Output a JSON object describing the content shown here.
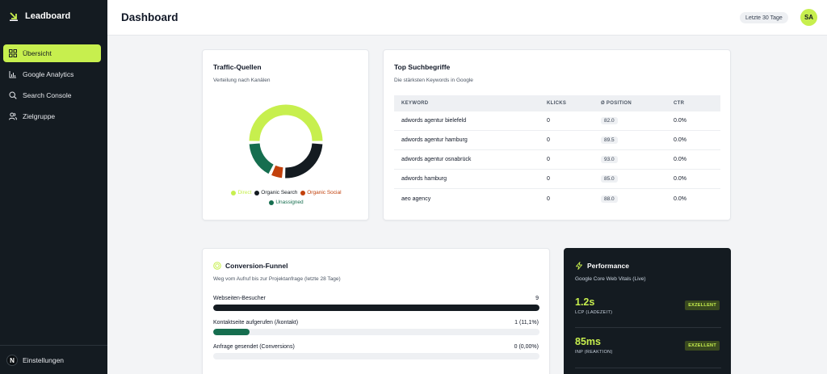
{
  "app": {
    "name": "Leadboard"
  },
  "sidebar": {
    "items": [
      {
        "label": "Übersicht",
        "icon": "grid-icon",
        "active": true
      },
      {
        "label": "Google Analytics",
        "icon": "bar-chart-icon"
      },
      {
        "label": "Search Console",
        "icon": "search-icon"
      },
      {
        "label": "Zielgruppe",
        "icon": "users-icon"
      }
    ],
    "settings": {
      "label": "Einstellungen",
      "icon_letter": "N"
    }
  },
  "header": {
    "title": "Dashboard",
    "date_range": "Letzte 30 Tage",
    "avatar_initials": "SA"
  },
  "traffic": {
    "title": "Traffic-Quellen",
    "subtitle": "Verteilung nach Kanälen",
    "legend": [
      {
        "label": "Direct",
        "color": "#c7ef4e"
      },
      {
        "label": "Organic Search",
        "color": "#141b21"
      },
      {
        "label": "Organic Social",
        "color": "#c2410c"
      },
      {
        "label": "Unassigned",
        "color": "#166e4f"
      }
    ]
  },
  "chart_data": {
    "type": "pie",
    "variant": "donut",
    "labels": [
      "Direct",
      "Organic Search",
      "Organic Social",
      "Unassigned"
    ],
    "values": [
      50,
      25,
      6,
      17
    ],
    "colors": [
      "#c7ef4e",
      "#141b21",
      "#c2410c",
      "#166e4f"
    ],
    "legend_position": "bottom"
  },
  "keywords": {
    "title": "Top Suchbegriffe",
    "subtitle": "Die stärksten Keywords in Google",
    "columns": [
      "KEYWORD",
      "KLICKS",
      "Ø POSITION",
      "CTR"
    ],
    "rows": [
      {
        "keyword": "adwords agentur bielefeld",
        "clicks": "0",
        "position": "82.0",
        "ctr": "0.0%"
      },
      {
        "keyword": "adwords agentur hamburg",
        "clicks": "0",
        "position": "89.5",
        "ctr": "0.0%"
      },
      {
        "keyword": "adwords agentur osnabrück",
        "clicks": "0",
        "position": "93.0",
        "ctr": "0.0%"
      },
      {
        "keyword": "adwords hamburg",
        "clicks": "0",
        "position": "85.0",
        "ctr": "0.0%"
      },
      {
        "keyword": "aeo agency",
        "clicks": "0",
        "position": "88.0",
        "ctr": "0.0%"
      }
    ]
  },
  "funnel": {
    "title": "Conversion-Funnel",
    "subtitle": "Weg vom Aufruf bis zur Projektanfrage (letzte 28 Tage)",
    "steps": [
      {
        "label": "Webseiten-Besucher",
        "value": "9",
        "fraction": 1.0,
        "color": "#141b21"
      },
      {
        "label": "Kontaktseite aufgerufen (/kontakt)",
        "value": "1 (11,1%)",
        "fraction": 0.111,
        "color": "#166e4f"
      },
      {
        "label": "Anfrage gesendet (Conversions)",
        "value": "0 (0,00%)",
        "fraction": 0,
        "color": "#166e4f"
      }
    ]
  },
  "performance": {
    "title": "Performance",
    "subtitle": "Google Core Web Vitals (Live)",
    "metrics": [
      {
        "value": "1.2s",
        "label": "LCP (LADEZEIT)",
        "badge": "EXZELLENT"
      },
      {
        "value": "85ms",
        "label": "INP (REAKTION)",
        "badge": "EXZELLENT"
      }
    ]
  },
  "colors": {
    "accent": "#c7ef4e",
    "sidebar": "#141b21",
    "green": "#166e4f",
    "orange": "#c2410c"
  }
}
